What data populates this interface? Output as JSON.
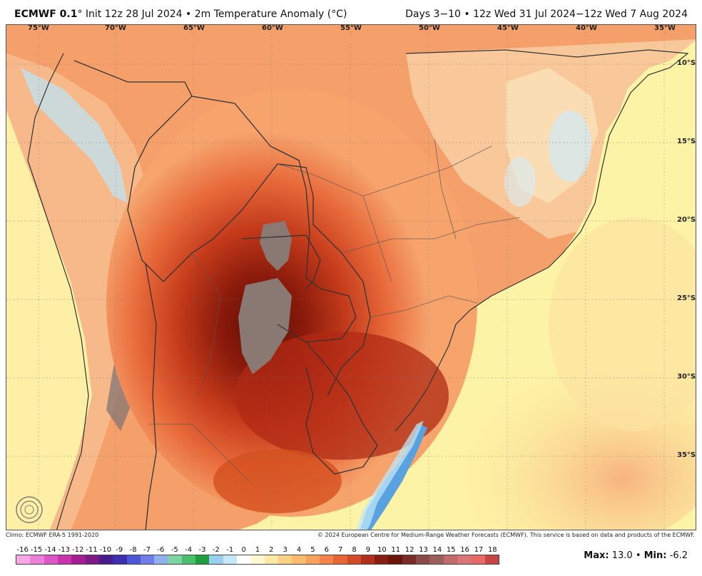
{
  "header": {
    "model": "ECMWF 0.1",
    "model_suffix": "° Init 12z 28 Jul 2024 • 2m Temperature Anomaly (°C)",
    "valid_range": "Days 3−10 • 12z Wed 31 Jul 2024−12z Wed 7 Aug 2024"
  },
  "map": {
    "longitudes": [
      "75°W",
      "70°W",
      "65°W",
      "60°W",
      "55°W",
      "50°W",
      "45°W",
      "40°W",
      "35°W"
    ],
    "latitudes": [
      "10°S",
      "15°S",
      "20°S",
      "25°S",
      "30°S",
      "35°S"
    ],
    "watermark": "WeatherBELL",
    "colors": {
      "ocean_base": "#fdf5a0",
      "warm_light": "#f8b37e",
      "warm_mid": "#f08a55",
      "warm_strong": "#e05a2e",
      "hot": "#c73a1c",
      "hotter": "#a0200f",
      "hottest": "#6e1208",
      "extreme": "#8a7873",
      "cool": "#bfe7f7",
      "cold": "#5aa2df"
    }
  },
  "footer": {
    "climo": "Climo: ECMWF ERA-5 1991-2020",
    "copyright": "© 2024 European Centre for Medium-Range Weather Forecasts (ECMWF). This service is based on data and products of the ECMWF."
  },
  "colorbar": {
    "labels": [
      "-16",
      "-15",
      "-14",
      "-13",
      "-12",
      "-11",
      "-10",
      "-9",
      "-8",
      "-7",
      "-6",
      "-5",
      "-4",
      "-3",
      "-2",
      "-1",
      "0",
      "1",
      "2",
      "3",
      "4",
      "5",
      "6",
      "7",
      "8",
      "9",
      "10",
      "11",
      "12",
      "13",
      "14",
      "15",
      "16",
      "17",
      "18"
    ],
    "colors": [
      "#f7a6e6",
      "#ec7fd8",
      "#dd55c6",
      "#c833b0",
      "#a41d92",
      "#7d1a86",
      "#4c1a8f",
      "#3a2fb0",
      "#4d57d6",
      "#6e7de8",
      "#8fb1ee",
      "#7dd3a2",
      "#4cbf6a",
      "#1f9d3f",
      "#9ad0ef",
      "#c6e8f7",
      "#ffffff",
      "#fef7d0",
      "#fde8a4",
      "#fcd184",
      "#fbbb6e",
      "#f8a15b",
      "#f38449",
      "#e86537",
      "#d24a27",
      "#b2301b",
      "#8a1d11",
      "#6a140a",
      "#7a2d28",
      "#8a4a45",
      "#9a5f5a",
      "#c06a6a",
      "#dc7676",
      "#e86767",
      "#c84444"
    ]
  },
  "stats": {
    "max_label": "Max:",
    "max_value": "13.0",
    "sep": "•",
    "min_label": "Min:",
    "min_value": "-6.2"
  }
}
